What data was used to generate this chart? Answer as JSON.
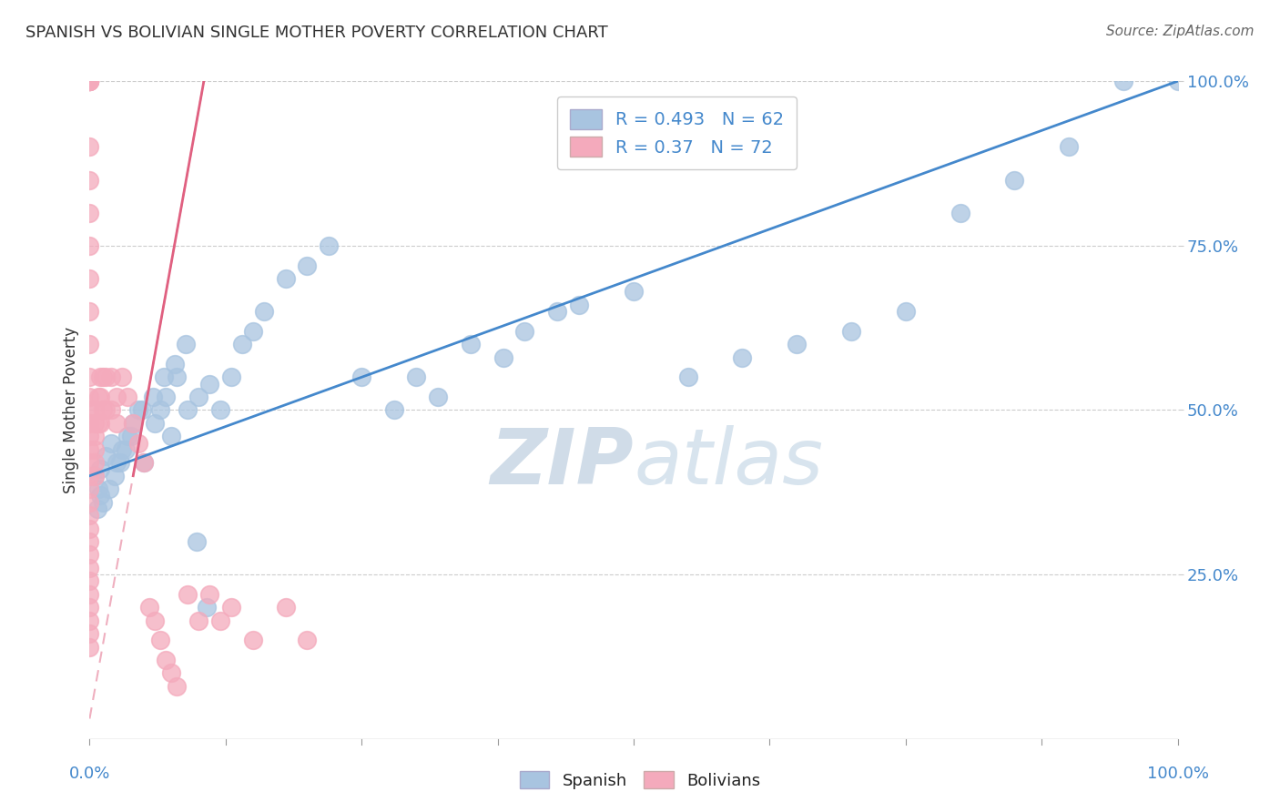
{
  "title": "SPANISH VS BOLIVIAN SINGLE MOTHER POVERTY CORRELATION CHART",
  "source": "Source: ZipAtlas.com",
  "ylabel": "Single Mother Poverty",
  "watermark": "ZIPatlas",
  "blue_R": 0.493,
  "blue_N": 62,
  "pink_R": 0.37,
  "pink_N": 72,
  "blue_color": "#A8C4E0",
  "pink_color": "#F4AABC",
  "line_blue_color": "#4488CC",
  "line_pink_color": "#E06080",
  "axis_color": "#4488CC",
  "text_color": "#333333",
  "background": "#FFFFFF",
  "grid_color": "#CCCCCC",
  "watermark_color": "#E0E8F0",
  "legend_text_color": "#4488CC",
  "blue_line_x0": 0.0,
  "blue_line_y0": 0.4,
  "blue_line_x1": 1.0,
  "blue_line_y1": 1.0,
  "pink_line_x0": 0.04,
  "pink_line_y0": 0.4,
  "pink_line_x1": 0.105,
  "pink_line_y1": 1.0,
  "xmin": 0.0,
  "xmax": 1.0,
  "ymin": 0.0,
  "ymax": 1.0,
  "blue_x": [
    0.005,
    0.008,
    0.01,
    0.01,
    0.015,
    0.02,
    0.025,
    0.03,
    0.035,
    0.04,
    0.045,
    0.05,
    0.06,
    0.065,
    0.07,
    0.075,
    0.08,
    0.09,
    0.1,
    0.11,
    0.12,
    0.13,
    0.14,
    0.15,
    0.16,
    0.18,
    0.2,
    0.22,
    0.25,
    0.28,
    0.3,
    0.32,
    0.35,
    0.38,
    0.4,
    0.43,
    0.45,
    0.5,
    0.55,
    0.6,
    0.65,
    0.7,
    0.75,
    0.8,
    0.85,
    0.9,
    0.95,
    1.0,
    0.007,
    0.012,
    0.018,
    0.023,
    0.028,
    0.033,
    0.038,
    0.048,
    0.058,
    0.068,
    0.078,
    0.088,
    0.098,
    0.108
  ],
  "blue_y": [
    0.4,
    0.38,
    0.41,
    0.37,
    0.43,
    0.45,
    0.42,
    0.44,
    0.46,
    0.48,
    0.5,
    0.42,
    0.48,
    0.5,
    0.52,
    0.46,
    0.55,
    0.5,
    0.52,
    0.54,
    0.5,
    0.55,
    0.6,
    0.62,
    0.65,
    0.7,
    0.72,
    0.75,
    0.55,
    0.5,
    0.55,
    0.52,
    0.6,
    0.58,
    0.62,
    0.65,
    0.66,
    0.68,
    0.55,
    0.58,
    0.6,
    0.62,
    0.65,
    0.8,
    0.85,
    0.9,
    1.0,
    1.0,
    0.35,
    0.36,
    0.38,
    0.4,
    0.42,
    0.44,
    0.46,
    0.5,
    0.52,
    0.55,
    0.57,
    0.6,
    0.3,
    0.2
  ],
  "pink_x": [
    0.0,
    0.0,
    0.0,
    0.0,
    0.0,
    0.0,
    0.0,
    0.0,
    0.0,
    0.0,
    0.0,
    0.0,
    0.0,
    0.0,
    0.0,
    0.0,
    0.0,
    0.0,
    0.0,
    0.0,
    0.0,
    0.0,
    0.0,
    0.0,
    0.0,
    0.0,
    0.005,
    0.005,
    0.005,
    0.005,
    0.005,
    0.005,
    0.008,
    0.008,
    0.01,
    0.01,
    0.01,
    0.012,
    0.012,
    0.015,
    0.015,
    0.02,
    0.02,
    0.025,
    0.025,
    0.03,
    0.035,
    0.04,
    0.045,
    0.05,
    0.055,
    0.06,
    0.065,
    0.07,
    0.075,
    0.08,
    0.09,
    0.1,
    0.11,
    0.12,
    0.13,
    0.15,
    0.18,
    0.2,
    0.0,
    0.0,
    0.0,
    0.0,
    0.0,
    0.0,
    0.0,
    0.0
  ],
  "pink_y": [
    1.0,
    1.0,
    1.0,
    1.0,
    1.0,
    1.0,
    0.9,
    0.85,
    0.8,
    0.75,
    0.7,
    0.65,
    0.6,
    0.55,
    0.52,
    0.5,
    0.48,
    0.46,
    0.44,
    0.42,
    0.4,
    0.38,
    0.36,
    0.34,
    0.32,
    0.3,
    0.5,
    0.48,
    0.46,
    0.44,
    0.42,
    0.4,
    0.52,
    0.48,
    0.55,
    0.52,
    0.48,
    0.55,
    0.5,
    0.55,
    0.5,
    0.55,
    0.5,
    0.52,
    0.48,
    0.55,
    0.52,
    0.48,
    0.45,
    0.42,
    0.2,
    0.18,
    0.15,
    0.12,
    0.1,
    0.08,
    0.22,
    0.18,
    0.22,
    0.18,
    0.2,
    0.15,
    0.2,
    0.15,
    0.28,
    0.26,
    0.24,
    0.22,
    0.2,
    0.18,
    0.16,
    0.14
  ]
}
